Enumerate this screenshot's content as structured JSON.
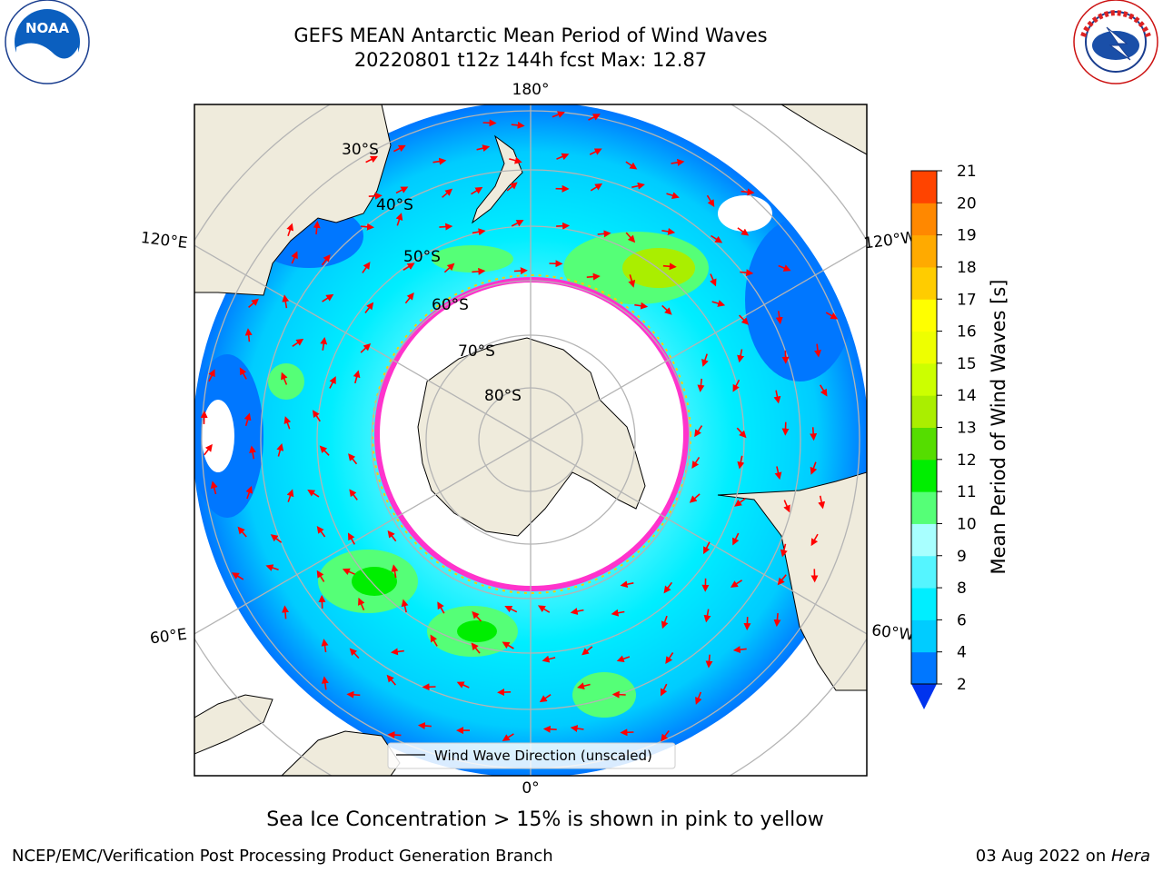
{
  "header": {
    "title_line1": "GEFS MEAN Antarctic Mean Period of Wind Waves",
    "title_line2": "20220801 t12z 144h fcst   Max: 12.87"
  },
  "logos": {
    "left": {
      "text": "NOAA",
      "ring_text": "NATIONAL OCEANIC AND ATMOSPHERIC ADMINISTRATION",
      "ring_text_bottom": "U.S. DEPARTMENT OF COMMERCE"
    },
    "right": {
      "ring_text": "NATIONAL WEATHER SERVICE"
    }
  },
  "map": {
    "projection": "south-polar-stereographic",
    "longitude_labels": {
      "top": "180°",
      "bottom": "0°",
      "left_upper": "120°E",
      "left_lower": "60°E",
      "right_upper": "120°W",
      "right_lower": "60°W"
    },
    "latitude_labels": [
      "30°S",
      "40°S",
      "50°S",
      "60°S",
      "70°S",
      "80°S"
    ],
    "legend": {
      "label": "Wind Wave Direction (unscaled)"
    },
    "colors": {
      "land": "#efebdc",
      "ice": "#ff33cc",
      "ice_edge": "#ffcc00",
      "arrow": "#ff0000",
      "grid": "#b4b4b4"
    }
  },
  "colorbar": {
    "label": "Mean Period of Wind Waves [s]",
    "ticks": [
      "2",
      "4",
      "6",
      "8",
      "9",
      "10",
      "11",
      "12",
      "13",
      "14",
      "15",
      "16",
      "17",
      "18",
      "19",
      "20",
      "21"
    ],
    "colors": [
      "#0077ff",
      "#00ccff",
      "#00eeff",
      "#55f5ff",
      "#a8ffff",
      "#55ff77",
      "#00ee00",
      "#55dd00",
      "#aaee00",
      "#ccff00",
      "#eeff00",
      "#ffff00",
      "#ffcc00",
      "#ffaa00",
      "#ff8800",
      "#ff4400",
      "#ff0000"
    ],
    "extend_color": "#0033ee"
  },
  "notes": {
    "sea_ice": "Sea Ice Concentration > 15% is shown in pink to yellow"
  },
  "footer": {
    "left": "NCEP/EMC/Verification Post Processing Product Generation Branch",
    "right_date": "03 Aug 2022 on ",
    "right_host": "Hera"
  }
}
